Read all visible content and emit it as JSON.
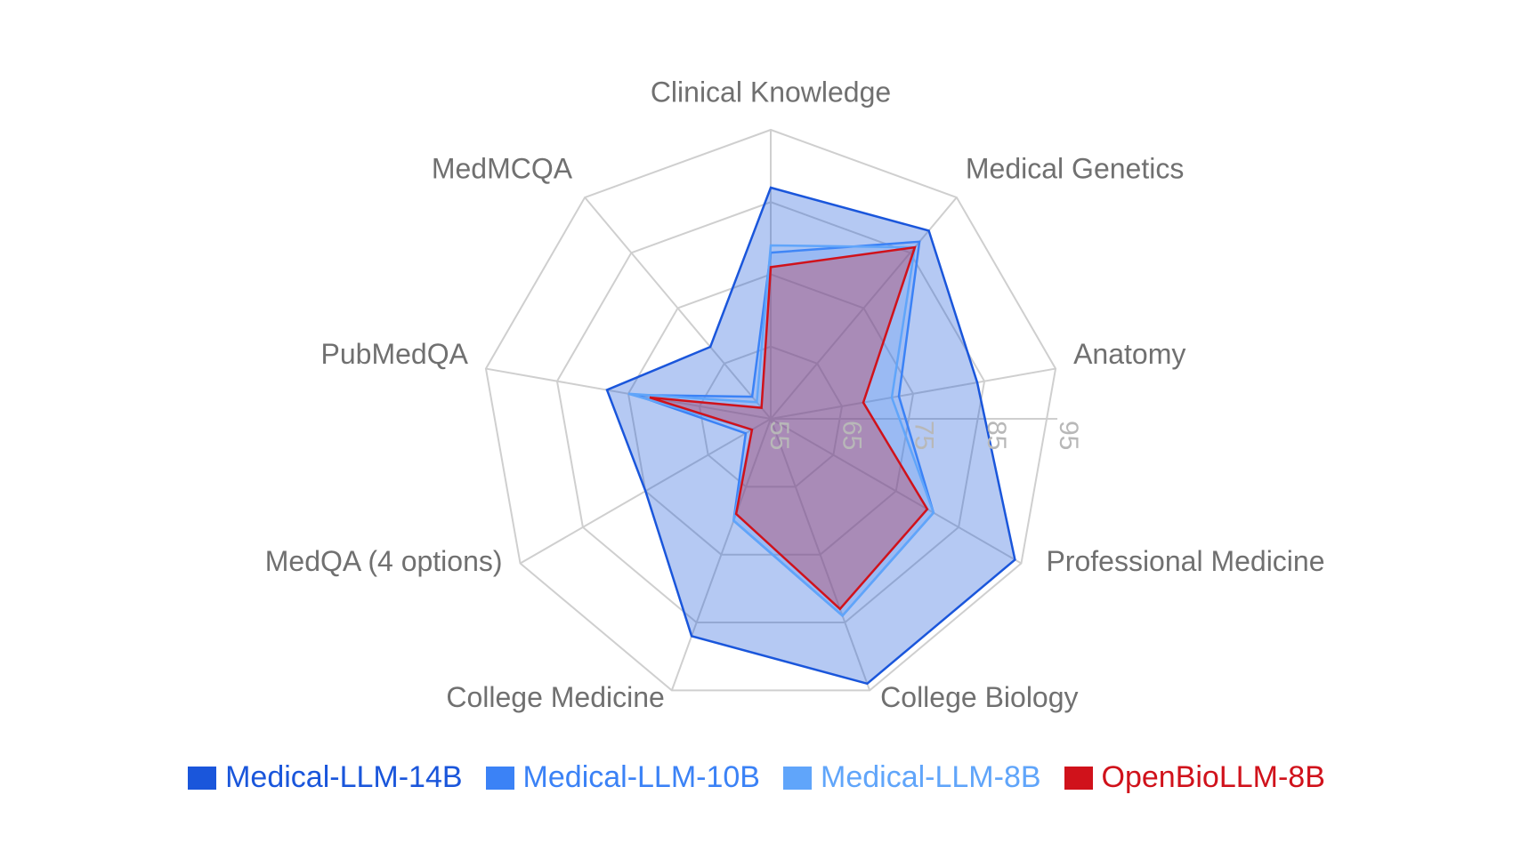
{
  "chart_data": {
    "type": "radar",
    "axes": [
      "Clinical Knowledge",
      "Medical Genetics",
      "Anatomy",
      "Professional Medicine",
      "College Biology",
      "College Medicine",
      "MedQA (4 options)",
      "PubMedQA",
      "MedMCQA"
    ],
    "r_ticks": [
      "55",
      "65",
      "75",
      "85",
      "95"
    ],
    "r_range": [
      55,
      95
    ],
    "grid": true,
    "legend_position": "bottom",
    "series": [
      {
        "name": "Medical-LLM-14B",
        "color": "#1a56db",
        "values": [
          87,
          89,
          84,
          94,
          94,
          87,
          75,
          78,
          68
        ]
      },
      {
        "name": "Medical-LLM-10B",
        "color": "#3b82f6",
        "values": [
          78,
          87,
          73,
          81,
          84,
          70,
          59,
          74,
          59
        ]
      },
      {
        "name": "Medical-LLM-8B",
        "color": "#60a5fa",
        "values": [
          79,
          86,
          72,
          81,
          84,
          70,
          58,
          75,
          58
        ]
      },
      {
        "name": "OpenBioLLM-8B",
        "color": "#d0121b",
        "values": [
          76,
          86,
          68,
          80,
          83,
          69,
          58,
          72,
          57
        ]
      }
    ]
  }
}
